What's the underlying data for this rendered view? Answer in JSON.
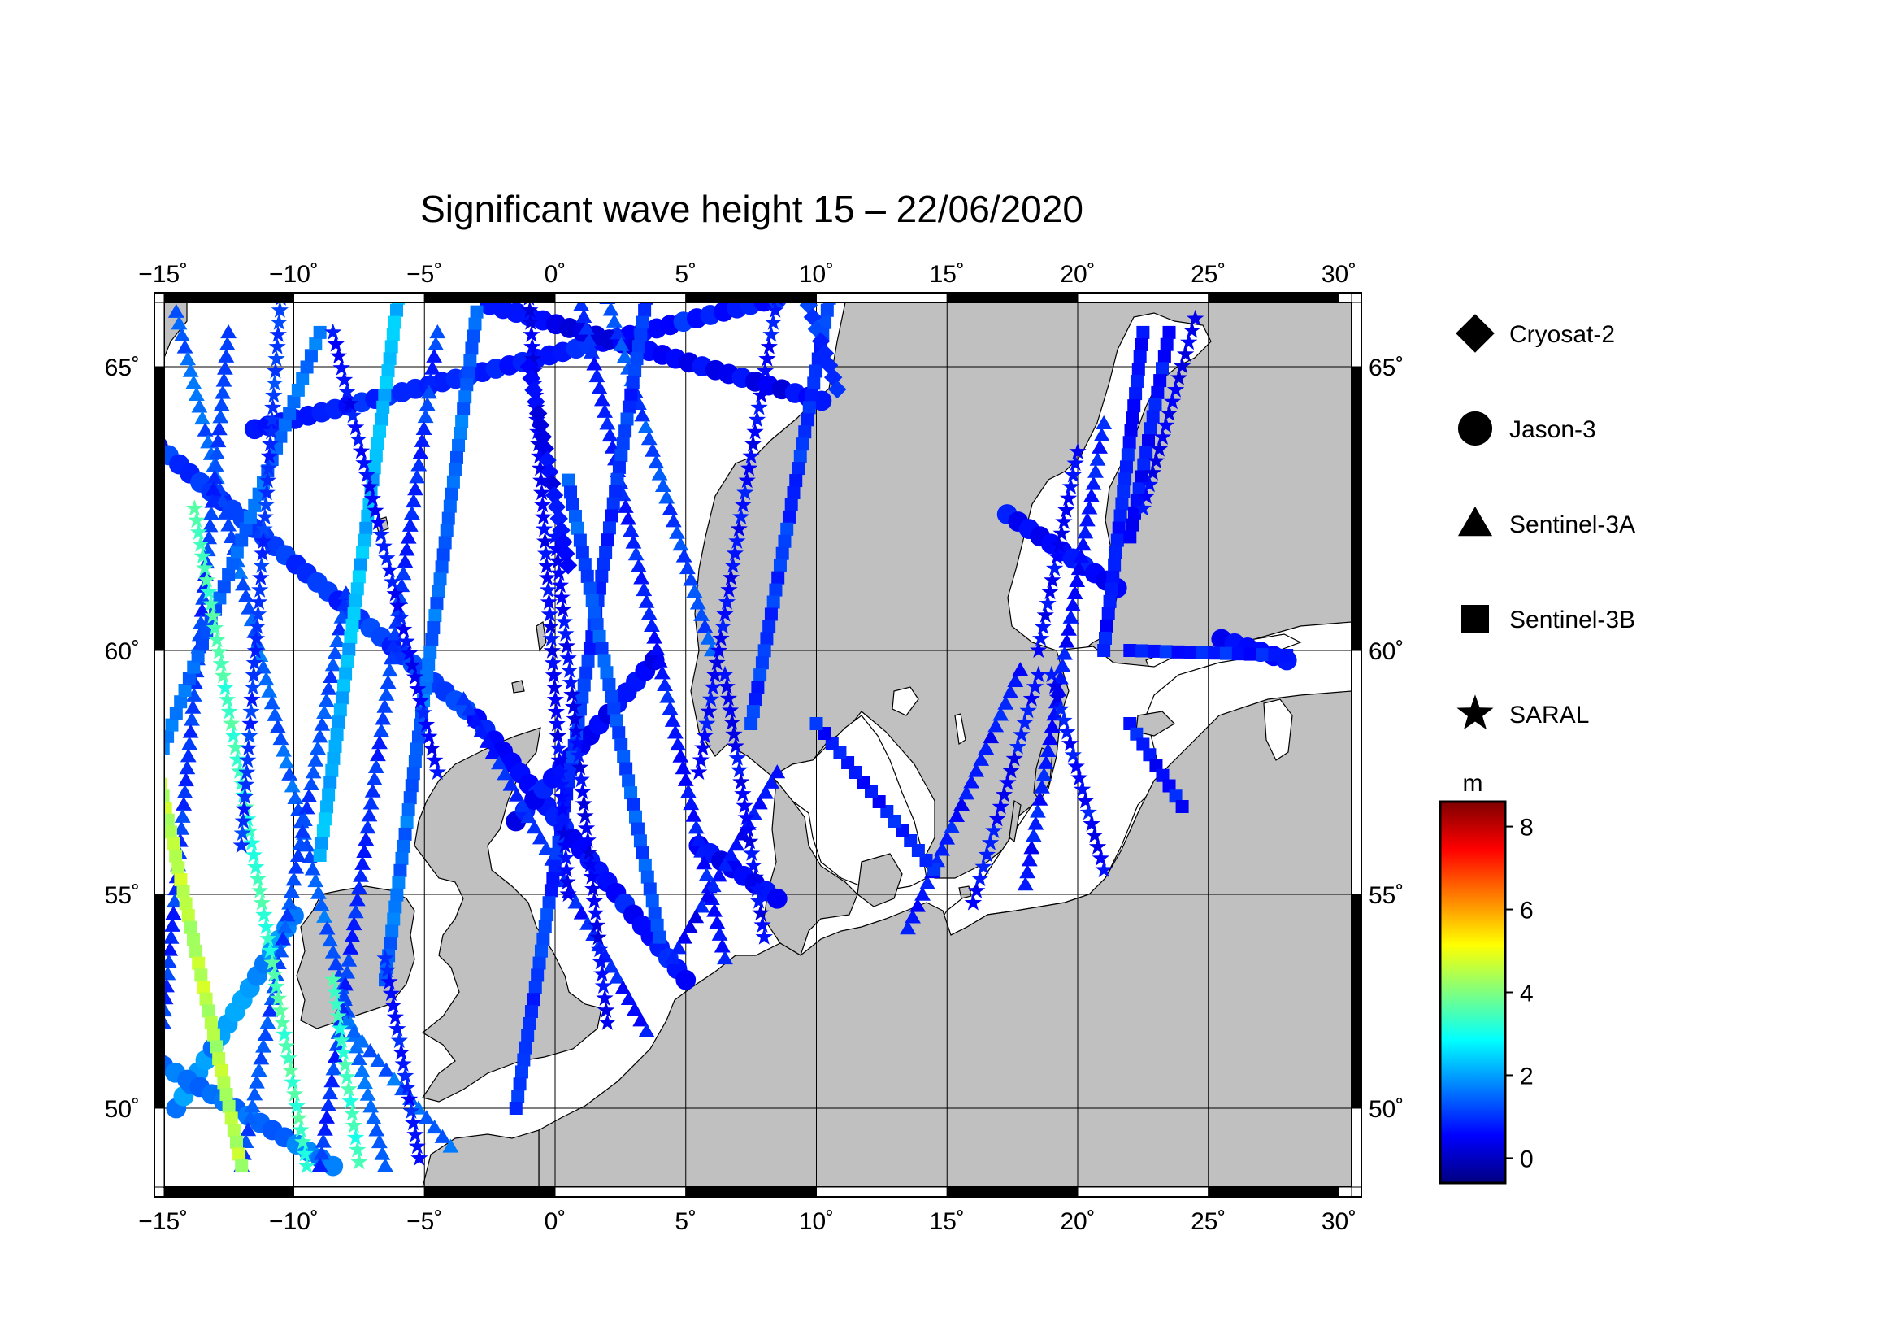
{
  "title": "Significant wave height 15 – 22/06/2020",
  "map": {
    "projection": "conic",
    "lon_range": [
      -15,
      30
    ],
    "lat_range": [
      48.5,
      66.2
    ],
    "lon_ticks": [
      {
        "value": -15,
        "label": "−15˚"
      },
      {
        "value": -10,
        "label": "−10˚"
      },
      {
        "value": -5,
        "label": "−5˚"
      },
      {
        "value": 0,
        "label": "0˚"
      },
      {
        "value": 5,
        "label": "5˚"
      },
      {
        "value": 10,
        "label": "10˚"
      },
      {
        "value": 15,
        "label": "15˚"
      },
      {
        "value": 20,
        "label": "20˚"
      },
      {
        "value": 25,
        "label": "25˚"
      },
      {
        "value": 30,
        "label": "30˚"
      }
    ],
    "lat_ticks": [
      {
        "value": 50,
        "label": "50˚"
      },
      {
        "value": 55,
        "label": "55˚"
      },
      {
        "value": 60,
        "label": "60˚"
      },
      {
        "value": 65,
        "label": "65˚"
      }
    ],
    "grid": true,
    "frame": "checkered black/white",
    "land_color": "#c0c0c0",
    "sea_color": "#ffffff"
  },
  "legend": {
    "placement": "right",
    "items": [
      {
        "label": "Cryosat-2",
        "marker": "diamond-icon"
      },
      {
        "label": "Jason-3",
        "marker": "circle-icon"
      },
      {
        "label": "Sentinel-3A",
        "marker": "triangle-icon"
      },
      {
        "label": "Sentinel-3B",
        "marker": "square-icon"
      },
      {
        "label": "SARAL",
        "marker": "star-icon"
      }
    ]
  },
  "colorbar": {
    "unit": "m",
    "range": [
      -0.6,
      8.6
    ],
    "ticks": [
      {
        "value": 0,
        "label": "0"
      },
      {
        "value": 2,
        "label": "2"
      },
      {
        "value": 4,
        "label": "4"
      },
      {
        "value": 6,
        "label": "6"
      },
      {
        "value": 8,
        "label": "8"
      }
    ],
    "colormap": [
      "#00007f",
      "#0000ff",
      "#007fff",
      "#00ffff",
      "#7fff7f",
      "#ffff00",
      "#ff7f00",
      "#ff0000",
      "#7f0000"
    ]
  },
  "tracks": [
    {
      "satellite": "Jason-3",
      "marker": "circle",
      "start": [
        -15.2,
        63.6
      ],
      "end": [
        -3.0,
        58.6
      ],
      "hs": 1.0
    },
    {
      "satellite": "Jason-3",
      "marker": "circle",
      "start": [
        -3.0,
        58.6
      ],
      "end": [
        5.0,
        53.0
      ],
      "hs": 0.7
    },
    {
      "satellite": "Jason-3",
      "marker": "circle",
      "start": [
        -11.5,
        63.9
      ],
      "end": [
        8.5,
        66.0
      ],
      "hs": 0.8
    },
    {
      "satellite": "Jason-3",
      "marker": "circle",
      "start": [
        -2.5,
        65.9
      ],
      "end": [
        10.2,
        64.4
      ],
      "hs": 0.5
    },
    {
      "satellite": "Jason-3",
      "marker": "circle",
      "start": [
        -1.5,
        56.5
      ],
      "end": [
        3.8,
        59.8
      ],
      "hs": 0.6
    },
    {
      "satellite": "Jason-3",
      "marker": "circle",
      "start": [
        -14.5,
        50.0
      ],
      "end": [
        -10.0,
        54.5
      ],
      "hs": 1.8
    },
    {
      "satellite": "Jason-3",
      "marker": "circle",
      "start": [
        -15.0,
        51.0
      ],
      "end": [
        -8.5,
        48.5
      ],
      "hs": 1.5
    },
    {
      "satellite": "Jason-3",
      "marker": "circle",
      "start": [
        17.3,
        62.4
      ],
      "end": [
        21.5,
        61.1
      ],
      "hs": 0.6
    },
    {
      "satellite": "Jason-3",
      "marker": "circle",
      "start": [
        25.5,
        60.2
      ],
      "end": [
        28.0,
        59.8
      ],
      "hs": 0.6
    },
    {
      "satellite": "Jason-3",
      "marker": "circle",
      "start": [
        5.5,
        56.0
      ],
      "end": [
        8.5,
        54.9
      ],
      "hs": 0.6
    },
    {
      "satellite": "Sentinel-3A",
      "marker": "triangle",
      "start": [
        -14.5,
        65.8
      ],
      "end": [
        -6.5,
        48.5
      ],
      "hs": 1.4
    },
    {
      "satellite": "Sentinel-3A",
      "marker": "triangle",
      "start": [
        -12.5,
        65.5
      ],
      "end": [
        -15.0,
        52.0
      ],
      "hs": 1.0
    },
    {
      "satellite": "Sentinel-3A",
      "marker": "triangle",
      "start": [
        -8.0,
        61.0
      ],
      "end": [
        -12.0,
        48.5
      ],
      "hs": 1.2
    },
    {
      "satellite": "Sentinel-3A",
      "marker": "triangle",
      "start": [
        -4.5,
        65.5
      ],
      "end": [
        -9.0,
        48.5
      ],
      "hs": 1.0
    },
    {
      "satellite": "Sentinel-3A",
      "marker": "triangle",
      "start": [
        -3.5,
        59.0
      ],
      "end": [
        3.5,
        51.8
      ],
      "hs": 0.8
    },
    {
      "satellite": "Sentinel-3A",
      "marker": "triangle",
      "start": [
        1.0,
        65.9
      ],
      "end": [
        6.5,
        53.5
      ],
      "hs": 0.8
    },
    {
      "satellite": "Sentinel-3A",
      "marker": "triangle",
      "start": [
        8.5,
        57.5
      ],
      "end": [
        4.5,
        53.5
      ],
      "hs": 0.6
    },
    {
      "satellite": "Sentinel-3A",
      "marker": "triangle",
      "start": [
        13.5,
        54.2
      ],
      "end": [
        17.8,
        59.6
      ],
      "hs": 0.7
    },
    {
      "satellite": "Sentinel-3A",
      "marker": "triangle",
      "start": [
        18.0,
        55.2
      ],
      "end": [
        21.0,
        64.0
      ],
      "hs": 0.7
    },
    {
      "satellite": "Sentinel-3A",
      "marker": "triangle",
      "start": [
        -8.0,
        52.0
      ],
      "end": [
        -4.0,
        49.0
      ],
      "hs": 1.5
    },
    {
      "satellite": "Sentinel-3A",
      "marker": "triangle",
      "start": [
        2.0,
        66.0
      ],
      "end": [
        6.0,
        60.0
      ],
      "hs": 1.2
    },
    {
      "satellite": "Sentinel-3B",
      "marker": "square",
      "start": [
        -15.2,
        57.5
      ],
      "end": [
        -12.0,
        48.5
      ],
      "hs": 4.5
    },
    {
      "satellite": "Sentinel-3B",
      "marker": "square",
      "start": [
        -15.0,
        58.0
      ],
      "end": [
        -9.0,
        65.5
      ],
      "hs": 1.5
    },
    {
      "satellite": "Sentinel-3B",
      "marker": "square",
      "start": [
        -6.0,
        66.0
      ],
      "end": [
        -9.0,
        55.8
      ],
      "hs": 2.2
    },
    {
      "satellite": "Sentinel-3B",
      "marker": "square",
      "start": [
        -3.0,
        65.8
      ],
      "end": [
        -6.5,
        53.0
      ],
      "hs": 1.5
    },
    {
      "satellite": "Sentinel-3B",
      "marker": "square",
      "start": [
        3.5,
        66.0
      ],
      "end": [
        -1.5,
        50.0
      ],
      "hs": 1.0
    },
    {
      "satellite": "Sentinel-3B",
      "marker": "square",
      "start": [
        0.5,
        63.0
      ],
      "end": [
        4.0,
        54.0
      ],
      "hs": 1.3
    },
    {
      "satellite": "Sentinel-3B",
      "marker": "square",
      "start": [
        10.5,
        66.0
      ],
      "end": [
        7.5,
        58.5
      ],
      "hs": 1.0
    },
    {
      "satellite": "Sentinel-3B",
      "marker": "square",
      "start": [
        22.5,
        65.5
      ],
      "end": [
        21.0,
        60.0
      ],
      "hs": 0.7
    },
    {
      "satellite": "Sentinel-3B",
      "marker": "square",
      "start": [
        23.5,
        65.5
      ],
      "end": [
        22.0,
        62.0
      ],
      "hs": 0.7
    },
    {
      "satellite": "Sentinel-3B",
      "marker": "square",
      "start": [
        22.0,
        58.5
      ],
      "end": [
        24.0,
        56.8
      ],
      "hs": 0.7
    },
    {
      "satellite": "Sentinel-3B",
      "marker": "square",
      "start": [
        22.0,
        60.0
      ],
      "end": [
        28.0,
        59.9
      ],
      "hs": 0.8
    },
    {
      "satellite": "Sentinel-3B",
      "marker": "square",
      "start": [
        14.5,
        55.5
      ],
      "end": [
        10.0,
        58.5
      ],
      "hs": 0.8
    },
    {
      "satellite": "SARAL",
      "marker": "star",
      "start": [
        -13.8,
        62.5
      ],
      "end": [
        -9.5,
        48.5
      ],
      "hs": 3.4
    },
    {
      "satellite": "SARAL",
      "marker": "star",
      "start": [
        -10.5,
        66.0
      ],
      "end": [
        -12.0,
        56.0
      ],
      "hs": 1.0
    },
    {
      "satellite": "SARAL",
      "marker": "star",
      "start": [
        -4.5,
        57.5
      ],
      "end": [
        -8.5,
        65.5
      ],
      "hs": 0.6
    },
    {
      "satellite": "SARAL",
      "marker": "star",
      "start": [
        -8.5,
        53.0
      ],
      "end": [
        -7.5,
        48.6
      ],
      "hs": 3.3
    },
    {
      "satellite": "SARAL",
      "marker": "star",
      "start": [
        -1.0,
        66.0
      ],
      "end": [
        0.5,
        55.0
      ],
      "hs": 0.5
    },
    {
      "satellite": "SARAL",
      "marker": "star",
      "start": [
        0.0,
        62.0
      ],
      "end": [
        2.0,
        52.0
      ],
      "hs": 0.5
    },
    {
      "satellite": "SARAL",
      "marker": "star",
      "start": [
        8.5,
        66.0
      ],
      "end": [
        5.5,
        57.5
      ],
      "hs": 0.6
    },
    {
      "satellite": "SARAL",
      "marker": "star",
      "start": [
        6.5,
        59.5
      ],
      "end": [
        8.0,
        54.0
      ],
      "hs": 0.5
    },
    {
      "satellite": "SARAL",
      "marker": "star",
      "start": [
        16.0,
        54.8
      ],
      "end": [
        18.5,
        59.5
      ],
      "hs": 0.6
    },
    {
      "satellite": "SARAL",
      "marker": "star",
      "start": [
        19.0,
        59.5
      ],
      "end": [
        21.0,
        55.5
      ],
      "hs": 0.6
    },
    {
      "satellite": "SARAL",
      "marker": "star",
      "start": [
        18.5,
        60.0
      ],
      "end": [
        20.0,
        63.5
      ],
      "hs": 0.6
    },
    {
      "satellite": "SARAL",
      "marker": "star",
      "start": [
        24.5,
        65.7
      ],
      "end": [
        22.5,
        62.5
      ],
      "hs": 0.5
    },
    {
      "satellite": "SARAL",
      "marker": "star",
      "start": [
        -6.5,
        53.5
      ],
      "end": [
        -5.2,
        48.7
      ],
      "hs": 0.8
    },
    {
      "satellite": "Cryosat-2",
      "marker": "diamond",
      "start": [
        -1.0,
        65.0
      ],
      "end": [
        0.5,
        61.5
      ],
      "hs": 0.5
    },
    {
      "satellite": "Cryosat-2",
      "marker": "diamond",
      "start": [
        9.7,
        65.9
      ],
      "end": [
        10.8,
        64.6
      ],
      "hs": 1.0
    }
  ]
}
